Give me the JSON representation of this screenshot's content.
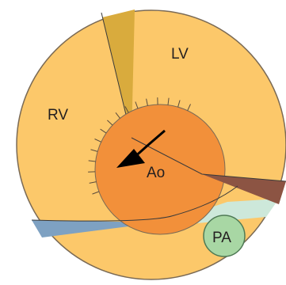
{
  "labels": {
    "lv": "LV",
    "rv": "RV",
    "ao": "Ao",
    "pa": "PA"
  },
  "colors": {
    "outer_fill": "#fcc86a",
    "outline": "#7a6a55",
    "aorta_fill": "#f2903a",
    "wedge_top": "#d9ab3d",
    "wedge_right": "#8c5443",
    "wedge_blue": "#7ea1c2",
    "wedge_mint": "#cde8da",
    "pa_fill": "#a8d7a4",
    "pa_stroke": "#4f7a55",
    "arrow": "#000000"
  }
}
